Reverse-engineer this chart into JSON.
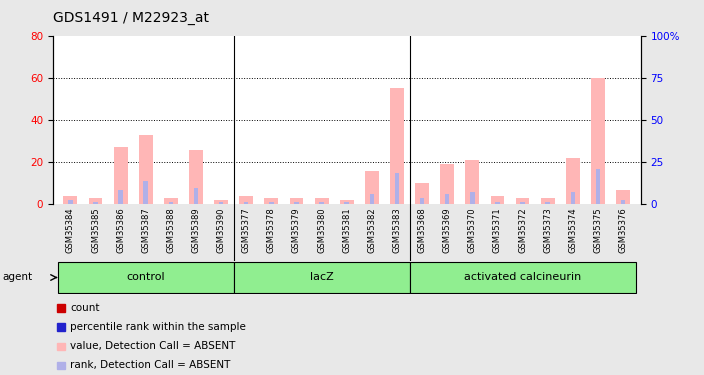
{
  "title": "GDS1491 / M22923_at",
  "samples": [
    "GSM35384",
    "GSM35385",
    "GSM35386",
    "GSM35387",
    "GSM35388",
    "GSM35389",
    "GSM35390",
    "GSM35377",
    "GSM35378",
    "GSM35379",
    "GSM35380",
    "GSM35381",
    "GSM35382",
    "GSM35383",
    "GSM35368",
    "GSM35369",
    "GSM35370",
    "GSM35371",
    "GSM35372",
    "GSM35373",
    "GSM35374",
    "GSM35375",
    "GSM35376"
  ],
  "group_labels": [
    "control",
    "lacZ",
    "activated calcineurin"
  ],
  "group_starts": [
    0,
    7,
    14
  ],
  "group_ends": [
    7,
    14,
    23
  ],
  "value_bars": [
    4,
    3,
    27,
    33,
    3,
    26,
    2,
    4,
    3,
    3,
    3,
    2,
    16,
    55,
    10,
    19,
    21,
    4,
    3,
    3,
    22,
    60,
    7
  ],
  "rank_bars": [
    2,
    1,
    7,
    11,
    1,
    8,
    1,
    1,
    1,
    1,
    1,
    1,
    5,
    15,
    3,
    5,
    6,
    1,
    1,
    1,
    6,
    17,
    2
  ],
  "ylim_left": [
    0,
    80
  ],
  "ylim_right": [
    0,
    100
  ],
  "yticks_left": [
    0,
    20,
    40,
    60,
    80
  ],
  "yticks_right": [
    0,
    25,
    50,
    75,
    100
  ],
  "value_color_absent": "#ffb6b6",
  "rank_color_absent": "#b0b0e8",
  "count_color": "#cc0000",
  "percentile_color": "#2222cc",
  "group_color": "#90ee90",
  "group_border_color": "#000000",
  "fig_bg_color": "#e8e8e8",
  "plot_bg_color": "#ffffff",
  "xtick_area_color": "#cccccc",
  "legend_labels": [
    "count",
    "percentile rank within the sample",
    "value, Detection Call = ABSENT",
    "rank, Detection Call = ABSENT"
  ]
}
